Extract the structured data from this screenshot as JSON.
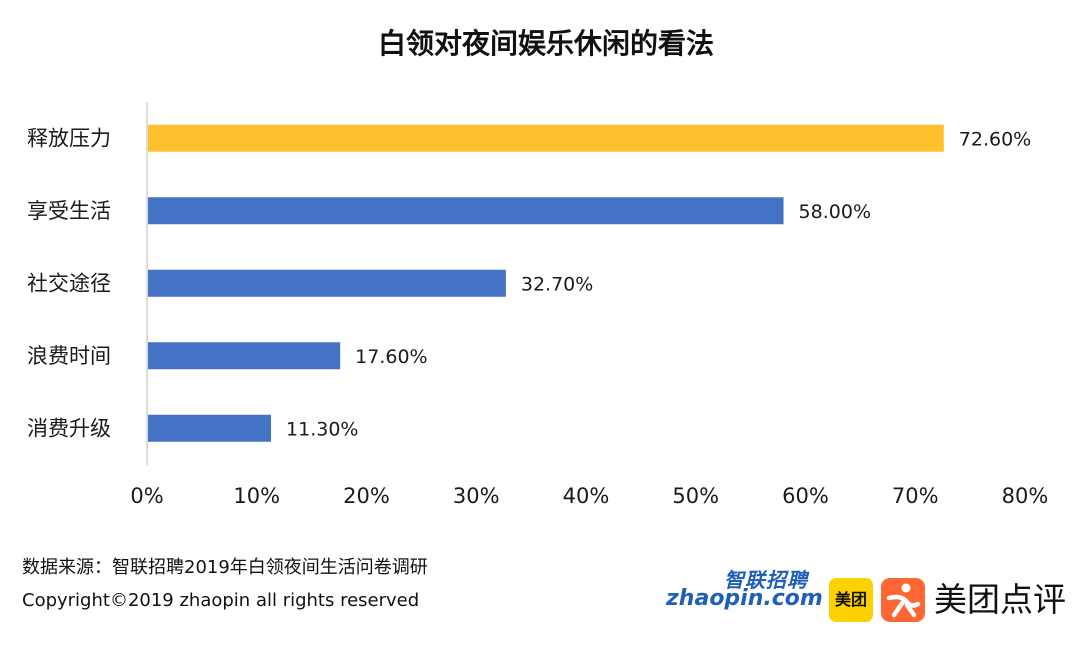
{
  "title": "白领对夜间娱乐休闲的看法",
  "chart_data": {
    "type": "bar",
    "orientation": "horizontal",
    "title": "白领对夜间娱乐休闲的看法",
    "categories": [
      "释放压力",
      "享受生活",
      "社交途径",
      "浪费时间",
      "消费升级"
    ],
    "values": [
      72.6,
      58.0,
      32.7,
      17.6,
      11.3
    ],
    "value_labels": [
      "72.60%",
      "58.00%",
      "32.70%",
      "17.60%",
      "11.30%"
    ],
    "bar_colors": [
      "#FFC02E",
      "#4472C4",
      "#4472C4",
      "#4472C4",
      "#4472C4"
    ],
    "xlim": [
      0,
      80
    ],
    "x_ticks": [
      0,
      10,
      20,
      30,
      40,
      50,
      60,
      70,
      80
    ],
    "x_tick_labels": [
      "0%",
      "10%",
      "20%",
      "30%",
      "40%",
      "50%",
      "60%",
      "70%",
      "80%"
    ],
    "xlabel": "",
    "ylabel": "",
    "grid": false,
    "legend": "none"
  },
  "footer": {
    "source": "数据来源：智联招聘2019年白领夜间生活问卷调研",
    "copyright": "Copyright©2019 zhaopin all rights reserved"
  },
  "logos": {
    "zhaopin_cn": "智联招聘",
    "zhaopin_en": "zhaopin.com",
    "meituan": "美团",
    "dianping": "美团点评"
  }
}
